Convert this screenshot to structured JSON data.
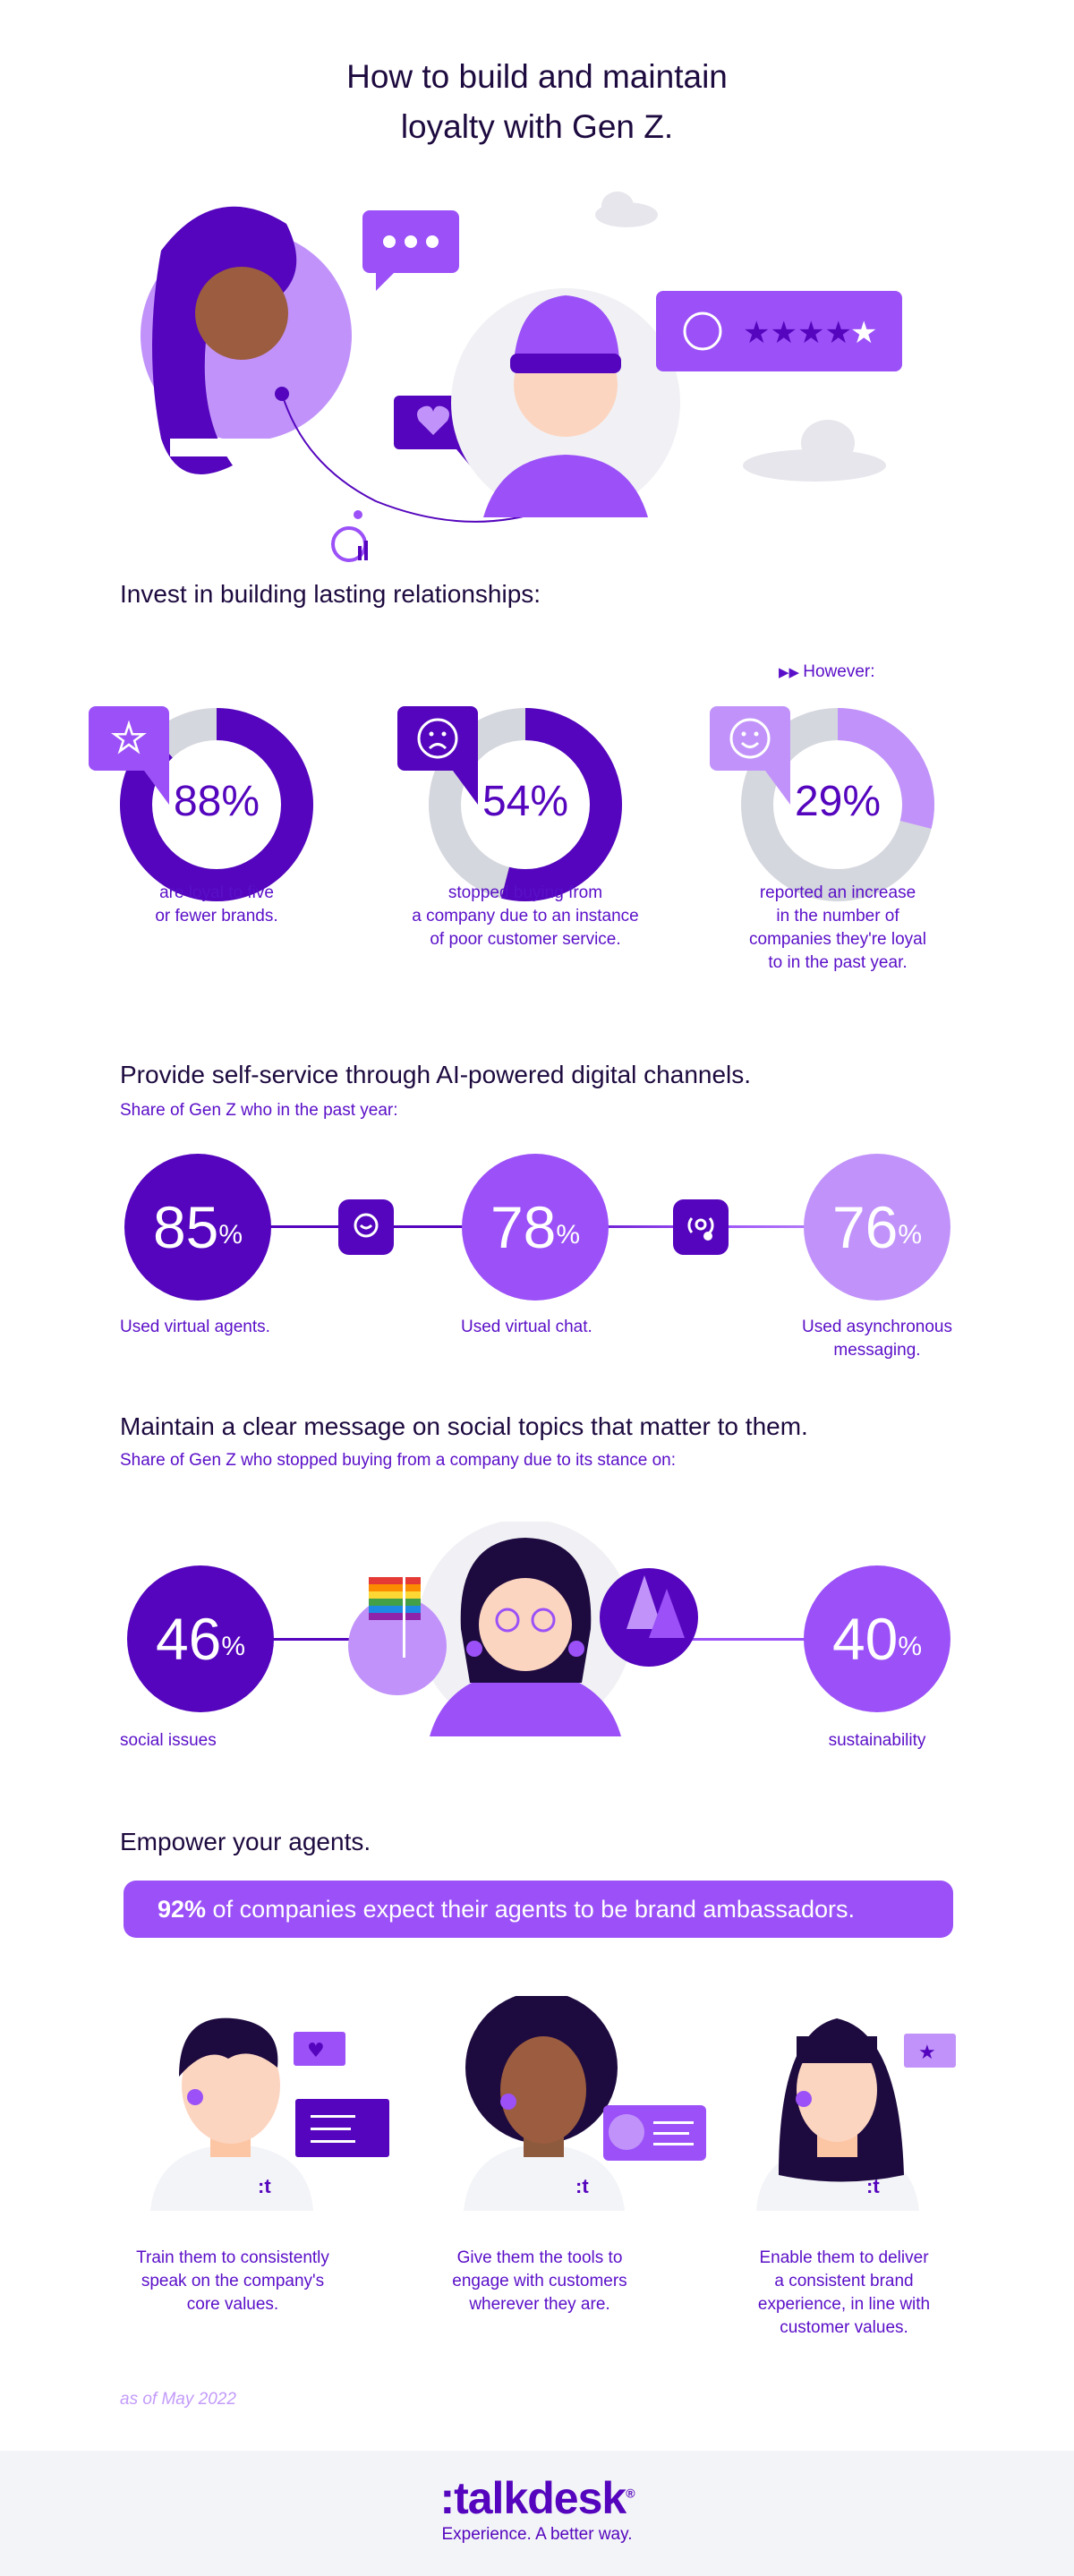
{
  "title_lines": [
    "How to build and maintain",
    "loyalty with Gen Z."
  ],
  "colors": {
    "dark": "#5405bd",
    "medium": "#9b51f7",
    "light": "#c193fa",
    "ring": "#d5d7de",
    "heading": "#1d0a3f"
  },
  "section1": {
    "heading": "Invest in building lasting relationships:",
    "however": "However:",
    "stats": [
      {
        "value": 88,
        "label": "88%",
        "icon": "star-icon",
        "caption": [
          "are loyal to five",
          "or fewer brands."
        ],
        "color": "#5405bd"
      },
      {
        "value": 54,
        "label": "54%",
        "icon": "sad-face-icon",
        "caption": [
          "stopped buying from",
          "a company due to an instance",
          "of poor customer service."
        ],
        "color": "#5405bd"
      },
      {
        "value": 29,
        "label": "29%",
        "icon": "smiley-face-icon",
        "caption": [
          "reported an increase",
          "in the number of",
          "companies they're loyal",
          "to in the past year."
        ],
        "color": "#c193fa"
      }
    ]
  },
  "section2": {
    "heading": "Provide self-service through AI-powered digital channels.",
    "subtitle": "Share of Gen Z who in the past year:",
    "stats": [
      {
        "value": "85",
        "unit": "%",
        "caption": [
          "Used virtual agents."
        ]
      },
      {
        "value": "78",
        "unit": "%",
        "caption": [
          "Used virtual chat."
        ]
      },
      {
        "value": "76",
        "unit": "%",
        "caption": [
          "Used asynchronous",
          "messaging."
        ]
      }
    ]
  },
  "section3": {
    "heading": "Maintain a clear message on social topics that matter to them.",
    "subtitle": "Share of Gen Z who stopped buying from a company due to its stance on:",
    "stats": [
      {
        "value": "46",
        "unit": "%",
        "caption": "social issues"
      },
      {
        "value": "40",
        "unit": "%",
        "caption": "sustainability"
      }
    ]
  },
  "section4": {
    "heading": "Empower your agents.",
    "banner_bold": "92%",
    "banner_text": " of companies expect their agents to be brand ambassadors.",
    "captions": [
      [
        "Train them to consistently",
        "speak on the company's",
        "core values."
      ],
      [
        "Give them the tools to",
        "engage with customers",
        "wherever they are."
      ],
      [
        "Enable them to deliver",
        "a consistent brand",
        "experience, in line with",
        "customer values."
      ]
    ]
  },
  "footnote": "as of May 2022",
  "footer": {
    "logo": ":talkdesk",
    "registered": "®",
    "tagline": "Experience. A better way."
  }
}
